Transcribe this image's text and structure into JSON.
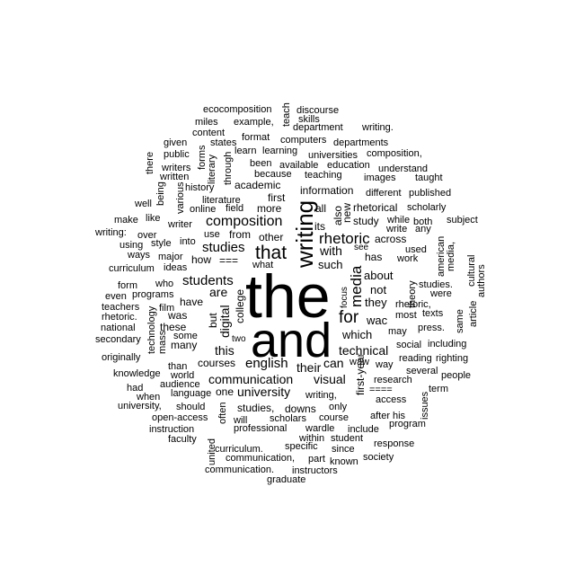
{
  "words": [
    "the",
    "and",
    "writing",
    "that",
    "for",
    "rhetoric",
    "media",
    "composition",
    "students",
    "studies",
    "english",
    "technical",
    "visual",
    "digital",
    "with",
    "are",
    "communication",
    "university",
    "their",
    "this",
    "can",
    "which",
    "such",
    "about",
    "they",
    "not",
    "wac",
    "from",
    "=== ",
    "how",
    "academic",
    "information",
    "first",
    "more",
    "also",
    "new",
    "study",
    "rhetorical",
    "across",
    "see",
    "has",
    "its",
    "all",
    "other",
    "what",
    "college",
    "but",
    "have",
    "was",
    "these",
    "many",
    "some",
    "two",
    "courses",
    "one",
    "studies,",
    "downs",
    "writing,",
    "only",
    "first-year",
    "waw",
    "way",
    "may",
    "most",
    "theory",
    "work",
    "texts",
    "press.",
    "focus",
    "literature",
    "online",
    "field",
    "use",
    "into",
    "style",
    "major",
    "ideas",
    "who",
    "film",
    "programs",
    "teachers",
    "rhetoric.",
    "national",
    "secondary",
    "originally",
    "knowledge",
    "had",
    "when",
    "university,",
    "should",
    "open-access",
    "instruction",
    "faculty",
    "united",
    "curriculum.",
    "communication,",
    "communication.",
    "instructors",
    "graduate",
    "part",
    "known",
    "society",
    "since",
    "specific",
    "within",
    "student",
    "response",
    "program",
    "access",
    "research",
    "====",
    "his",
    "after",
    "include",
    "course",
    "wardle",
    "professional",
    "scholars",
    "will",
    "often",
    "language",
    "audience",
    "world",
    "than",
    "mass",
    "technology",
    "several",
    "social",
    "including",
    "reading",
    "writing",
    "people",
    "term",
    "issues",
    "same",
    "article",
    "righting",
    "studies.",
    "were",
    "rhetoric,",
    "cultural",
    "authors",
    "media,",
    "american",
    "used",
    "subject",
    "both",
    "any",
    "while",
    "write",
    "published",
    "scholarly",
    "different",
    "taught",
    "images",
    "understand",
    "education",
    "universities",
    "composition,",
    "departments",
    "computers",
    "teaching",
    "available",
    "because",
    "been",
    "learn",
    "learning",
    "format",
    "states",
    "content",
    "miles",
    "example,",
    "department",
    "skills",
    "teach",
    "discourse",
    "ecocomposition",
    "writing.",
    "given",
    "public",
    "writers",
    "written",
    "there",
    "being",
    "various",
    "forms",
    "literary",
    "through",
    "history",
    "well",
    "like",
    "make",
    "writer",
    "over",
    "writing:",
    "using",
    "ways",
    "curriculum",
    "form",
    "even"
  ]
}
